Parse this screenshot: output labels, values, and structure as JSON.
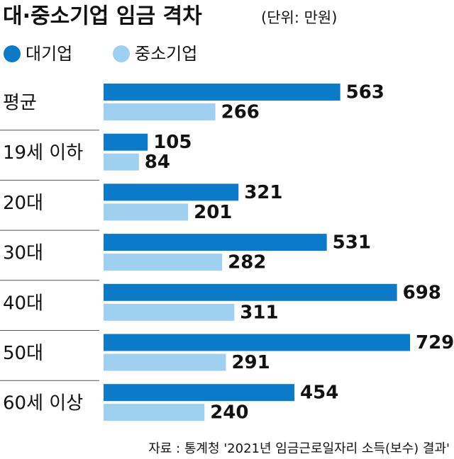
{
  "chart_data": {
    "type": "bar",
    "orientation": "horizontal",
    "title": "대·중소기업 임금 격차",
    "subtitle": "(단위: 만원)",
    "source": "자료 : 통계청 '2021년 임금근로일자리 소득(보수) 결과'",
    "categories": [
      "평균",
      "19세 이하",
      "20대",
      "30대",
      "40대",
      "50대",
      "60세 이상"
    ],
    "series": [
      {
        "name": "대기업",
        "color": "#0a7ac9",
        "values": [
          563,
          105,
          321,
          531,
          698,
          729,
          454
        ]
      },
      {
        "name": "중소기업",
        "color": "#9fd0ef",
        "values": [
          266,
          84,
          201,
          282,
          311,
          291,
          240
        ]
      }
    ],
    "legend": "top-left"
  }
}
